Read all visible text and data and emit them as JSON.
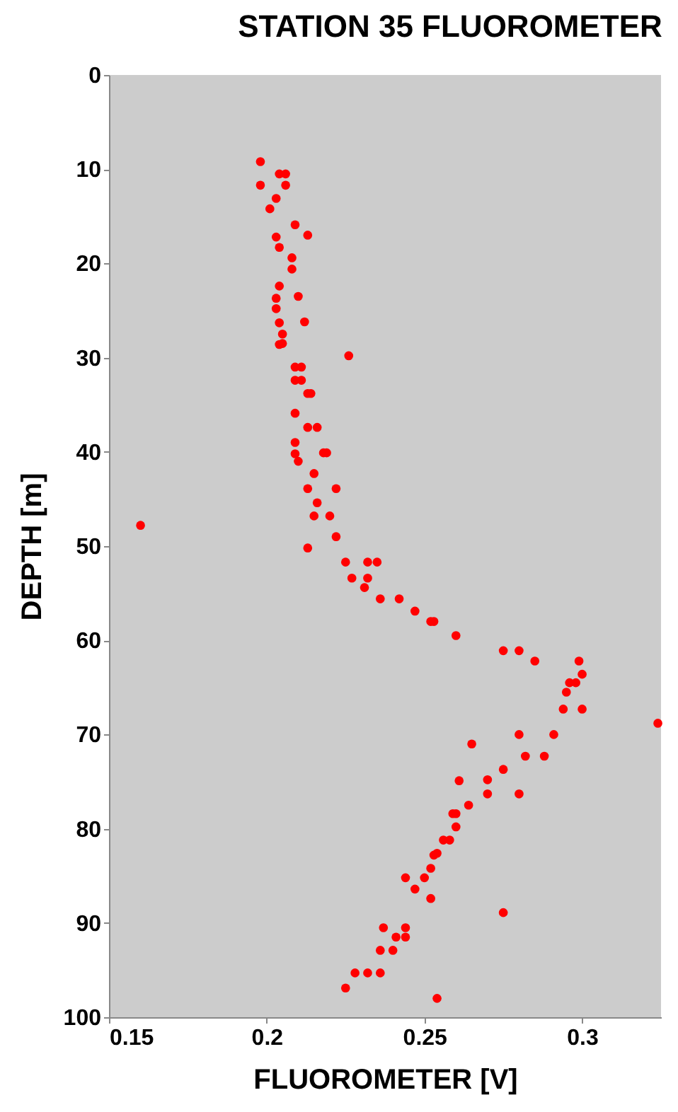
{
  "chart_data": {
    "type": "scatter",
    "title": "STATION 35 FLUOROMETER",
    "xlabel": "FLUOROMETER [V]",
    "ylabel": "DEPTH [m]",
    "xlim": [
      0.15,
      0.325
    ],
    "xticks": [
      0.15,
      0.2,
      0.25,
      0.3
    ],
    "ylim": [
      100,
      0
    ],
    "yticks": [
      0,
      10,
      20,
      30,
      40,
      50,
      60,
      70,
      80,
      90,
      100
    ],
    "grid": false,
    "marker": "circle",
    "series": [
      {
        "color": "#ff0000",
        "x": [
          0.198,
          0.206,
          0.204,
          0.198,
          0.206,
          0.203,
          0.201,
          0.209,
          0.213,
          0.203,
          0.204,
          0.208,
          0.208,
          0.204,
          0.21,
          0.203,
          0.203,
          0.212,
          0.204,
          0.205,
          0.204,
          0.205,
          0.226,
          0.209,
          0.211,
          0.209,
          0.211,
          0.213,
          0.214,
          0.209,
          0.213,
          0.216,
          0.209,
          0.218,
          0.219,
          0.209,
          0.21,
          0.215,
          0.222,
          0.213,
          0.216,
          0.22,
          0.215,
          0.16,
          0.222,
          0.213,
          0.225,
          0.232,
          0.235,
          0.227,
          0.232,
          0.231,
          0.236,
          0.242,
          0.247,
          0.252,
          0.253,
          0.26,
          0.275,
          0.28,
          0.285,
          0.299,
          0.3,
          0.296,
          0.298,
          0.295,
          0.294,
          0.3,
          0.324,
          0.265,
          0.28,
          0.291,
          0.282,
          0.288,
          0.275,
          0.27,
          0.261,
          0.27,
          0.28,
          0.264,
          0.259,
          0.26,
          0.26,
          0.256,
          0.258,
          0.254,
          0.253,
          0.252,
          0.244,
          0.25,
          0.247,
          0.252,
          0.275,
          0.237,
          0.244,
          0.241,
          0.244,
          0.236,
          0.24,
          0.228,
          0.232,
          0.236,
          0.225,
          0.254
        ],
        "values": [
          9.2,
          10.5,
          10.5,
          11.7,
          11.7,
          13.1,
          14.2,
          15.9,
          17.0,
          17.2,
          18.3,
          19.4,
          20.6,
          22.4,
          23.5,
          23.7,
          24.8,
          26.2,
          26.3,
          27.5,
          28.6,
          28.5,
          29.8,
          31.0,
          31.0,
          32.4,
          32.4,
          33.8,
          33.8,
          35.9,
          37.4,
          37.4,
          39.0,
          40.1,
          40.1,
          40.2,
          41.0,
          42.3,
          43.9,
          43.9,
          45.4,
          46.8,
          46.8,
          47.8,
          49.0,
          50.2,
          51.7,
          51.7,
          51.7,
          53.4,
          53.4,
          54.4,
          55.6,
          55.6,
          56.9,
          58.0,
          58.0,
          59.5,
          61.1,
          61.1,
          62.2,
          62.2,
          63.6,
          64.5,
          64.5,
          65.5,
          67.3,
          67.3,
          68.8,
          71.0,
          70.0,
          70.0,
          72.3,
          72.3,
          73.7,
          74.8,
          74.9,
          76.3,
          76.3,
          77.5,
          78.4,
          78.4,
          79.8,
          81.2,
          81.2,
          82.6,
          82.8,
          84.2,
          85.2,
          85.2,
          86.4,
          87.4,
          88.9,
          90.5,
          90.5,
          91.5,
          91.5,
          92.9,
          92.9,
          95.3,
          95.3,
          95.3,
          96.9,
          98.0
        ]
      }
    ]
  }
}
